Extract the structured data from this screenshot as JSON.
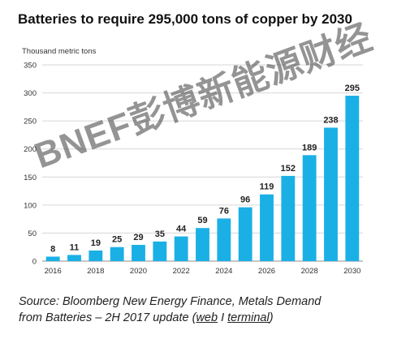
{
  "title": "Batteries to require 295,000 tons of copper by 2030",
  "unit_label": "Thousand metric tons",
  "source": {
    "line1": "Source: Bloomberg New Energy Finance, Metals Demand",
    "line2_prefix": "from Batteries – 2H 2017 update (",
    "link_web": "web",
    "separator": " I ",
    "link_terminal": "terminal",
    "line2_suffix": ")"
  },
  "watermark": "BNEF彭博新能源财经",
  "chart_data": {
    "type": "bar",
    "title": "Batteries to require 295,000 tons of copper by 2030",
    "ylabel": "Thousand metric tons",
    "xlabel": "",
    "categories": [
      "2016",
      "2017",
      "2018",
      "2019",
      "2020",
      "2021",
      "2022",
      "2023",
      "2024",
      "2025",
      "2026",
      "2027",
      "2028",
      "2029",
      "2030"
    ],
    "x_tick_labels": [
      "2016",
      "2018",
      "2020",
      "2022",
      "2024",
      "2026",
      "2028",
      "2030"
    ],
    "values": [
      8,
      11,
      19,
      25,
      29,
      35,
      44,
      59,
      76,
      96,
      119,
      152,
      189,
      238,
      295
    ],
    "ylim": [
      0,
      350
    ],
    "yticks": [
      0,
      50,
      100,
      150,
      200,
      250,
      300,
      350
    ],
    "grid": true,
    "bar_color": "#1ab0e6",
    "grid_color": "#d6d6d6"
  }
}
